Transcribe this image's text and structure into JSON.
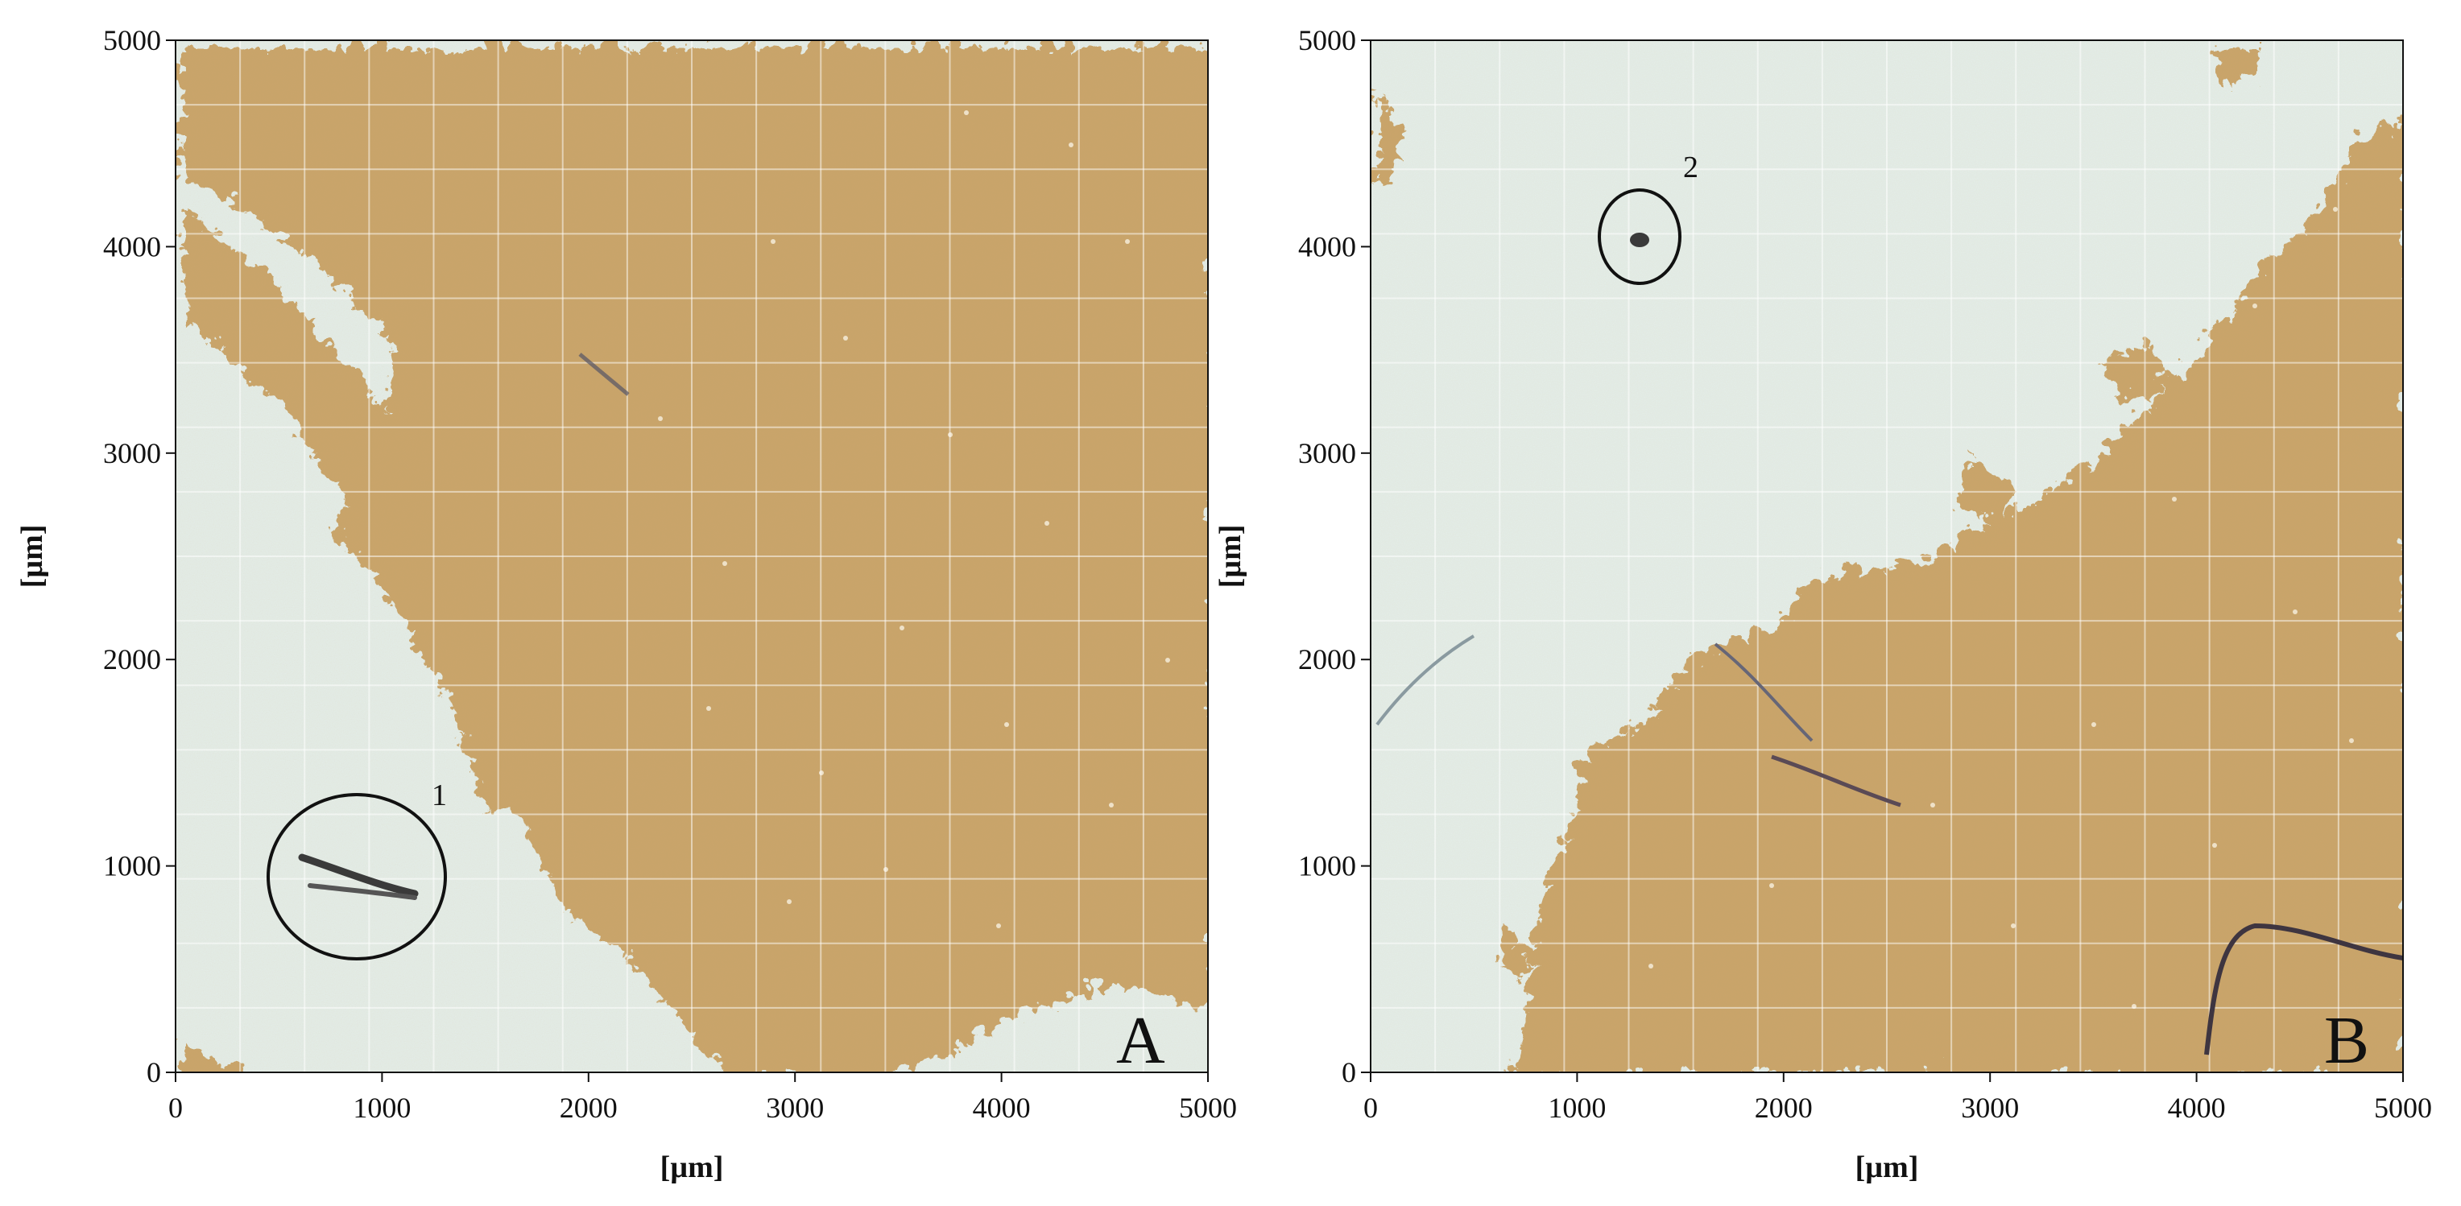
{
  "panels": [
    {
      "id": "A",
      "letter": "A",
      "x_label": "[µm]",
      "y_label": "[µm]",
      "x_range": [
        0,
        5000
      ],
      "y_range": [
        0,
        5000
      ],
      "x_ticks": [
        "0",
        "1000",
        "2000",
        "3000",
        "4000",
        "5000"
      ],
      "y_ticks": [
        "0",
        "1000",
        "2000",
        "3000",
        "4000",
        "5000"
      ],
      "markers": [
        {
          "number": "1",
          "x_um": 880,
          "y_um": 950,
          "description": "dark elongated particle circled"
        }
      ]
    },
    {
      "id": "B",
      "letter": "B",
      "x_label": "[µm]",
      "y_label": "[µm]",
      "x_range": [
        0,
        5000
      ],
      "y_range": [
        0,
        5000
      ],
      "x_ticks": [
        "0",
        "1000",
        "2000",
        "3000",
        "4000",
        "5000"
      ],
      "y_ticks": [
        "0",
        "1000",
        "2000",
        "3000",
        "4000",
        "5000"
      ],
      "markers": [
        {
          "number": "2",
          "x_um": 1300,
          "y_um": 4030,
          "description": "small dark particle circled"
        }
      ]
    }
  ],
  "colors": {
    "sediment": "#c9a46a",
    "sediment_dark": "#b68f55",
    "background_clear": "#e4eeea",
    "grid_line": "#ffffff",
    "circle": "#111111"
  }
}
